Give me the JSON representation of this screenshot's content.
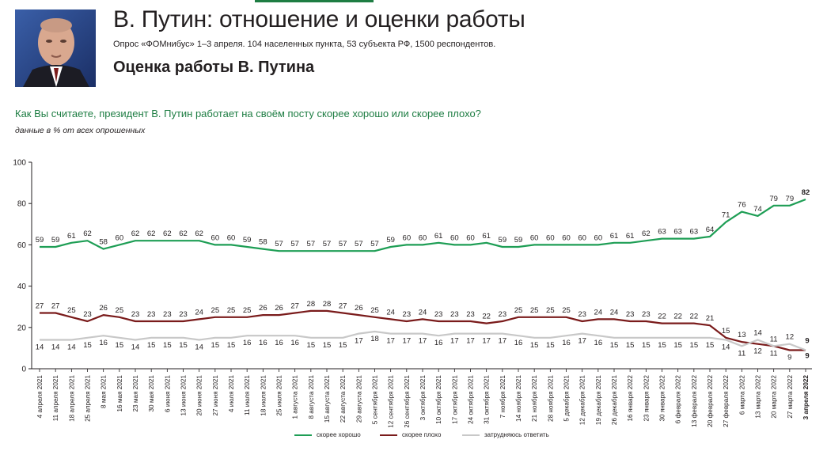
{
  "header": {
    "title": "В. Путин: отношение и оценки работы",
    "subtitle": "Опрос «ФОМнибус» 1–3 апреля. 104 населенных пункта, 53 субъекта РФ, 1500 респондентов.",
    "section_title": "Оценка работы В. Путина"
  },
  "question": "Как Вы считаете, президент В. Путин работает на своём посту скорее хорошо или скорее плохо?",
  "note": "данные в % от всех опрошенных",
  "colors": {
    "good": "#1e9e55",
    "bad": "#7a1b1b",
    "hard": "#c8c8c8",
    "accent": "#1e7d43"
  },
  "chart_data": {
    "type": "line",
    "ylim": [
      0,
      100
    ],
    "yticks": [
      0,
      20,
      40,
      60,
      80,
      100
    ],
    "categories": [
      "4 апреля 2021",
      "11 апреля 2021",
      "18 апреля 2021",
      "25 апреля 2021",
      "8 мая 2021",
      "16 мая 2021",
      "23 мая 2021",
      "30 мая 2021",
      "6 июня 2021",
      "13 июня 2021",
      "20 июня 2021",
      "27 июня 2021",
      "4 июля 2021",
      "11 июля 2021",
      "18 июля 2021",
      "25 июля 2021",
      "1 августа 2021",
      "8 августа 2021",
      "15 августа 2021",
      "22 августа 2021",
      "29 августа 2021",
      "5 сентября 2021",
      "12 сентября 2021",
      "26 сентября 2021",
      "3 октября 2021",
      "10 октября 2021",
      "17 октября 2021",
      "24 октября 2021",
      "31 октября 2021",
      "7 ноября 2021",
      "14 ноября 2021",
      "21 ноября 2021",
      "28 ноября 2021",
      "5 декабря 2021",
      "12 декабря 2021",
      "19 декабря 2021",
      "26 декабря 2021",
      "16 января 2022",
      "23 января 2022",
      "30 января 2022",
      "6 февраля 2022",
      "13 февраля 2022",
      "20 февраля 2022",
      "27 февраля 2022",
      "6 марта 2022",
      "13 марта 2022",
      "20 марта 2022",
      "27 марта 2022",
      "3 апреля 2022"
    ],
    "series": [
      {
        "name": "скорее хорошо",
        "values": [
          59,
          59,
          61,
          62,
          58,
          60,
          62,
          62,
          62,
          62,
          62,
          60,
          60,
          59,
          58,
          57,
          57,
          57,
          57,
          57,
          57,
          57,
          59,
          60,
          60,
          61,
          60,
          60,
          61,
          59,
          59,
          60,
          60,
          60,
          60,
          60,
          61,
          61,
          62,
          63,
          63,
          63,
          64,
          71,
          76,
          74,
          79,
          79,
          82
        ]
      },
      {
        "name": "скорее плохо",
        "values": [
          27,
          27,
          25,
          23,
          26,
          25,
          23,
          23,
          23,
          23,
          24,
          25,
          25,
          25,
          26,
          26,
          27,
          28,
          28,
          27,
          26,
          25,
          24,
          23,
          24,
          23,
          23,
          23,
          22,
          23,
          25,
          25,
          25,
          25,
          23,
          24,
          24,
          23,
          23,
          22,
          22,
          22,
          21,
          15,
          13,
          12,
          11,
          9,
          9
        ]
      },
      {
        "name": "затрудняюсь ответить",
        "values": [
          14,
          14,
          14,
          15,
          16,
          15,
          14,
          15,
          15,
          15,
          14,
          15,
          15,
          16,
          16,
          16,
          16,
          15,
          15,
          15,
          17,
          18,
          17,
          17,
          17,
          16,
          17,
          17,
          17,
          17,
          16,
          15,
          15,
          16,
          17,
          16,
          15,
          15,
          15,
          15,
          15,
          15,
          15,
          14,
          11,
          14,
          11,
          12,
          9
        ]
      }
    ]
  },
  "legend": [
    "скорее хорошо",
    "скорее плохо",
    "затрудняюсь ответить"
  ]
}
